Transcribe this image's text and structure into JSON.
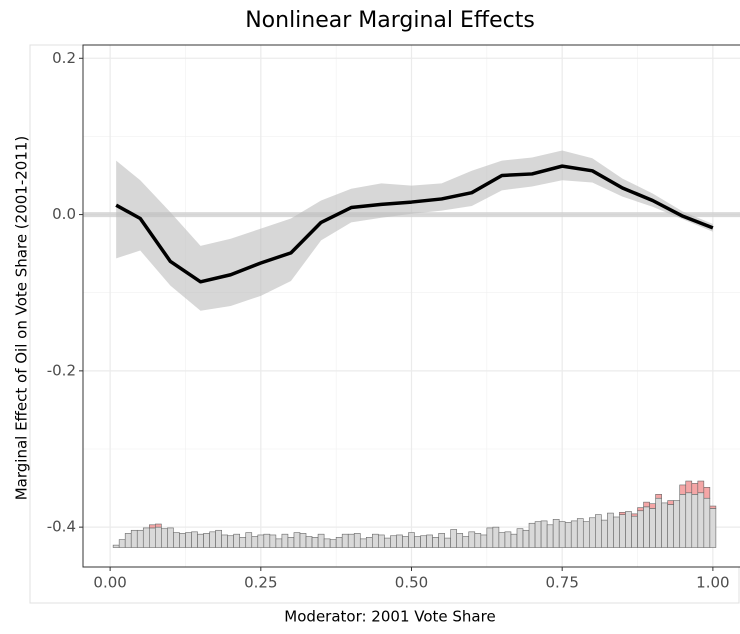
{
  "chart_data": {
    "type": "line",
    "title": "Nonlinear Marginal Effects",
    "xlabel": "Moderator: 2001 Vote Share",
    "ylabel": "Marginal Effect of Oil on Vote Share (2001-2011)",
    "xlim": [
      -0.045,
      1.045
    ],
    "ylim": [
      -0.451,
      0.217
    ],
    "xticks": [
      {
        "value": 0,
        "label": "0.00"
      },
      {
        "value": 0.25,
        "label": "0.25"
      },
      {
        "value": 0.5,
        "label": "0.50"
      },
      {
        "value": 0.75,
        "label": "0.75"
      },
      {
        "value": 1,
        "label": "1.00"
      }
    ],
    "yticks": [
      {
        "value": -0.4,
        "label": "-0.4"
      },
      {
        "value": -0.2,
        "label": "-0.2"
      },
      {
        "value": 0,
        "label": "0.0"
      },
      {
        "value": 0.2,
        "label": "0.2"
      }
    ],
    "grid": true,
    "reference_line": 0,
    "x": [
      0.01,
      0.05,
      0.1,
      0.15,
      0.2,
      0.25,
      0.3,
      0.35,
      0.4,
      0.45,
      0.5,
      0.55,
      0.6,
      0.65,
      0.7,
      0.75,
      0.8,
      0.85,
      0.9,
      0.95,
      1.0
    ],
    "series": [
      {
        "name": "estimate",
        "color": "#000000",
        "values": [
          0.012,
          -0.005,
          -0.06,
          -0.086,
          -0.077,
          -0.062,
          -0.049,
          -0.01,
          0.009,
          0.013,
          0.016,
          0.02,
          0.028,
          0.05,
          0.052,
          0.062,
          0.056,
          0.034,
          0.018,
          -0.002,
          -0.017
        ]
      },
      {
        "name": "lower",
        "color": "#bdbdbd",
        "values": [
          -0.056,
          -0.046,
          -0.091,
          -0.123,
          -0.117,
          -0.104,
          -0.085,
          -0.033,
          -0.01,
          -0.004,
          0.001,
          0.005,
          0.011,
          0.031,
          0.036,
          0.044,
          0.041,
          0.023,
          0.01,
          -0.006,
          -0.022
        ]
      },
      {
        "name": "upper",
        "color": "#bdbdbd",
        "values": [
          0.069,
          0.044,
          0.003,
          -0.04,
          -0.031,
          -0.018,
          -0.005,
          0.018,
          0.033,
          0.04,
          0.037,
          0.04,
          0.056,
          0.069,
          0.073,
          0.082,
          0.072,
          0.046,
          0.027,
          0.004,
          -0.012
        ]
      }
    ],
    "histogram": {
      "base": -0.426,
      "bins": [
        0.005,
        0.015,
        0.025,
        0.035,
        0.045,
        0.055,
        0.065,
        0.075,
        0.085,
        0.095,
        0.105,
        0.115,
        0.125,
        0.135,
        0.145,
        0.155,
        0.165,
        0.175,
        0.185,
        0.195,
        0.205,
        0.215,
        0.225,
        0.235,
        0.245,
        0.255,
        0.265,
        0.275,
        0.285,
        0.295,
        0.305,
        0.315,
        0.325,
        0.335,
        0.345,
        0.355,
        0.365,
        0.375,
        0.385,
        0.395,
        0.405,
        0.415,
        0.425,
        0.435,
        0.445,
        0.455,
        0.465,
        0.475,
        0.485,
        0.495,
        0.505,
        0.515,
        0.525,
        0.535,
        0.545,
        0.555,
        0.565,
        0.575,
        0.585,
        0.595,
        0.605,
        0.615,
        0.625,
        0.635,
        0.645,
        0.655,
        0.665,
        0.675,
        0.685,
        0.695,
        0.705,
        0.715,
        0.725,
        0.735,
        0.745,
        0.755,
        0.765,
        0.775,
        0.785,
        0.795,
        0.805,
        0.815,
        0.825,
        0.835,
        0.845,
        0.855,
        0.865,
        0.875,
        0.885,
        0.895,
        0.905,
        0.915,
        0.925,
        0.935,
        0.945,
        0.955,
        0.965,
        0.975,
        0.985,
        0.995,
        1.005
      ],
      "series": [
        {
          "color": "#d9d9d9",
          "values": [
            0.003,
            0.01,
            0.018,
            0.022,
            0.022,
            0.025,
            0.025,
            0.026,
            0.024,
            0.025,
            0.019,
            0.018,
            0.019,
            0.02,
            0.017,
            0.018,
            0.02,
            0.022,
            0.016,
            0.015,
            0.017,
            0.013,
            0.019,
            0.014,
            0.016,
            0.017,
            0.016,
            0.011,
            0.017,
            0.013,
            0.019,
            0.018,
            0.014,
            0.013,
            0.017,
            0.011,
            0.01,
            0.013,
            0.017,
            0.017,
            0.018,
            0.011,
            0.013,
            0.017,
            0.016,
            0.012,
            0.015,
            0.016,
            0.014,
            0.019,
            0.014,
            0.015,
            0.016,
            0.013,
            0.018,
            0.012,
            0.023,
            0.018,
            0.014,
            0.02,
            0.018,
            0.016,
            0.025,
            0.026,
            0.019,
            0.02,
            0.017,
            0.024,
            0.022,
            0.031,
            0.033,
            0.034,
            0.029,
            0.036,
            0.033,
            0.032,
            0.034,
            0.037,
            0.033,
            0.038,
            0.042,
            0.035,
            0.044,
            0.039,
            0.042,
            0.046,
            0.04,
            0.047,
            0.052,
            0.05,
            0.063,
            0.057,
            0.055,
            0.06,
            0.068,
            0.07,
            0.068,
            0.07,
            0.063,
            0.05
          ]
        },
        {
          "color": "#f4a6a6",
          "values": [
            0,
            0,
            0,
            0,
            0,
            0,
            0.004,
            0.004,
            0,
            0,
            0,
            0,
            0,
            0,
            0,
            0,
            0,
            0,
            0,
            0,
            0,
            0,
            0,
            0,
            0,
            0,
            0,
            0,
            0,
            0,
            0,
            0,
            0,
            0,
            0,
            0,
            0,
            0,
            0,
            0,
            0,
            0,
            0,
            0,
            0,
            0,
            0,
            0,
            0,
            0,
            0,
            0,
            0,
            0,
            0,
            0,
            0,
            0,
            0,
            0,
            0,
            0,
            0,
            0,
            0,
            0,
            0,
            0,
            0,
            0,
            0,
            0,
            0,
            0,
            0,
            0,
            0,
            0,
            0,
            0,
            0,
            0,
            0,
            0,
            0.003,
            0,
            0.003,
            0.004,
            0.006,
            0.006,
            0.005,
            0,
            0.005,
            0,
            0.012,
            0.015,
            0.014,
            0.015,
            0.014,
            0.003
          ]
        }
      ]
    }
  }
}
